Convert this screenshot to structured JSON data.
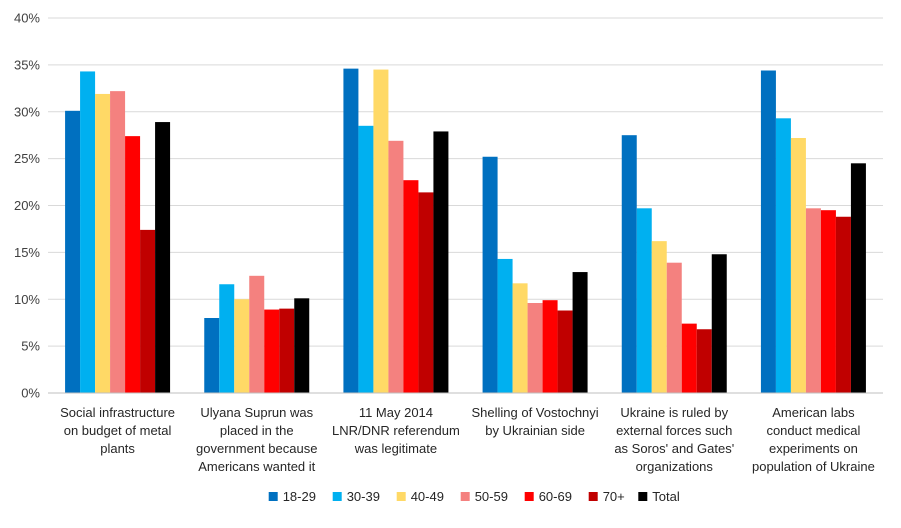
{
  "chart_data": {
    "type": "bar",
    "title": "",
    "xlabel": "",
    "ylabel": "",
    "ylim": [
      0,
      40
    ],
    "y_ticks": [
      "0%",
      "5%",
      "10%",
      "15%",
      "20%",
      "25%",
      "30%",
      "35%",
      "40%"
    ],
    "y_tick_values": [
      0,
      5,
      10,
      15,
      20,
      25,
      30,
      35,
      40
    ],
    "grid": "horizontal",
    "legend_position": "bottom",
    "categories": [
      [
        "Social infrastructure",
        "on budget of metal",
        "plants"
      ],
      [
        "Ulyana Suprun was",
        "placed in the",
        "government because",
        "Americans wanted it"
      ],
      [
        "11 May 2014",
        "LNR/DNR referendum",
        "was legitimate"
      ],
      [
        "Shelling of Vostochnyi",
        "by Ukrainian side"
      ],
      [
        "Ukraine is ruled by",
        "external forces such",
        "as Soros' and Gates'",
        "organizations"
      ],
      [
        "American labs",
        "conduct medical",
        "experiments on",
        "population of Ukraine"
      ]
    ],
    "series": [
      {
        "name": "18-29",
        "color": "#0070C0",
        "values": [
          30.1,
          8.0,
          34.6,
          25.2,
          27.5,
          34.4
        ]
      },
      {
        "name": "30-39",
        "color": "#00B0F0",
        "values": [
          34.3,
          11.6,
          28.5,
          14.3,
          19.7,
          29.3
        ]
      },
      {
        "name": "40-49",
        "color": "#FFD966",
        "values": [
          31.9,
          10.0,
          34.5,
          11.7,
          16.2,
          27.2
        ]
      },
      {
        "name": "50-59",
        "color": "#F4817F",
        "values": [
          32.2,
          12.5,
          26.9,
          9.6,
          13.9,
          19.7
        ]
      },
      {
        "name": "60-69",
        "color": "#FF0000",
        "values": [
          27.4,
          8.9,
          22.7,
          9.9,
          7.4,
          19.5
        ]
      },
      {
        "name": "70+",
        "color": "#C00000",
        "values": [
          17.4,
          9.0,
          21.4,
          8.8,
          6.8,
          18.8
        ]
      },
      {
        "name": "Total",
        "color": "#000000",
        "values": [
          28.9,
          10.1,
          27.9,
          12.9,
          14.8,
          24.5
        ]
      }
    ]
  }
}
